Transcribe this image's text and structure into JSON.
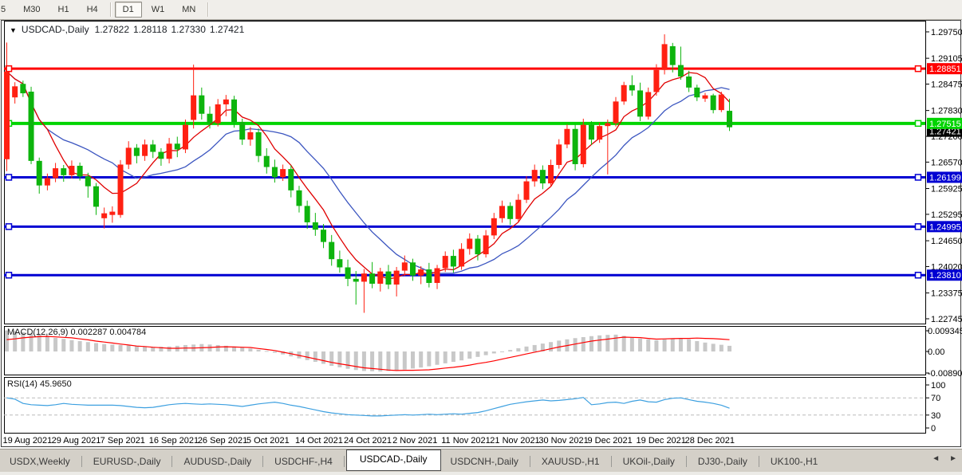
{
  "toolbar": {
    "timeframes": [
      {
        "label": "5",
        "active": false
      },
      {
        "label": "M30",
        "active": false
      },
      {
        "label": "H1",
        "active": false
      },
      {
        "label": "H4",
        "active": false
      },
      {
        "label": "D1",
        "active": true
      },
      {
        "label": "W1",
        "active": false
      },
      {
        "label": "MN",
        "active": false
      }
    ]
  },
  "title": {
    "dropdown_arrow": "▼",
    "symbol": "USDCAD-,Daily",
    "open": "1.27822",
    "high": "1.28118",
    "low": "1.27330",
    "close": "1.27421"
  },
  "indicators": {
    "macd_label": "MACD(12,26,9) 0.002287 0.004784",
    "rsi_label": "RSI(14) 45.9650"
  },
  "axes": {
    "price_ticks": [
      "1.29750",
      "1.29105",
      "1.28475",
      "1.27830",
      "1.27200",
      "1.26570",
      "1.25925",
      "1.25295",
      "1.24650",
      "1.24020",
      "1.23375",
      "1.22745"
    ],
    "macd_ticks": [
      {
        "label": "0.009345",
        "value": 0.009345
      },
      {
        "label": "0.00",
        "value": 0
      },
      {
        "label": "-0.00890",
        "value": -0.0089
      }
    ],
    "rsi_ticks": [
      {
        "label": "100",
        "value": 100
      },
      {
        "label": "70",
        "value": 70
      },
      {
        "label": "30",
        "value": 30
      },
      {
        "label": "0",
        "value": 0
      }
    ],
    "dates": [
      "19 Aug 2021",
      "29 Aug 2021",
      "7 Sep 2021",
      "16 Sep 2021",
      "26 Sep 2021",
      "5 Oct 2021",
      "14 Oct 2021",
      "24 Oct 2021",
      "2 Nov 2021",
      "11 Nov 2021",
      "21 Nov 2021",
      "30 Nov 2021",
      "9 Dec 2021",
      "19 Dec 2021",
      "28 Dec 2021"
    ]
  },
  "levels": [
    {
      "label": "1.28851",
      "price": 1.28851,
      "color": "#ff0000",
      "width": 3
    },
    {
      "label": "1.27515",
      "price": 1.27515,
      "color": "#00d400",
      "width": 4
    },
    {
      "label": "1.26199",
      "price": 1.26199,
      "color": "#0000d2",
      "width": 3
    },
    {
      "label": "1.24995",
      "price": 1.24995,
      "color": "#0000d2",
      "width": 3
    },
    {
      "label": "1.23810",
      "price": 1.2381,
      "color": "#0000d2",
      "width": 3
    }
  ],
  "current_price": {
    "label": "1.27421",
    "price": 1.27421,
    "bg": "#000000"
  },
  "colors": {
    "candle_up": "#ff2012",
    "candle_down": "#0db40d",
    "ma_fast": "#e00000",
    "ma_slow": "#3c56c0",
    "macd_histogram": "#c8c8c8",
    "macd_signal": "#ff0000",
    "rsi_line": "#3da0e0",
    "rsi_level_dash": "#bcbcbc",
    "panel_border": "#000000",
    "axis_text": "#000000"
  },
  "chart_data": [
    {
      "type": "candlestick",
      "symbol": "USDCAD-",
      "timeframe": "Daily",
      "note": "bullish candles rendered red, bearish candles rendered green in this theme",
      "ohlc_last": {
        "open": 1.27822,
        "high": 1.28118,
        "low": 1.2733,
        "close": 1.27421
      },
      "y_ticks": [
        1.2975,
        1.29105,
        1.28475,
        1.2783,
        1.272,
        1.2657,
        1.25925,
        1.25295,
        1.2465,
        1.2402,
        1.23375,
        1.22745
      ],
      "horizontal_lines": [
        1.28851,
        1.27515,
        1.26199,
        1.24995,
        1.2381
      ],
      "ma_fast_period": 6,
      "ma_slow_period": 14,
      "candles": [
        [
          1.2664,
          1.2949,
          1.2635,
          1.2878
        ],
        [
          1.2815,
          1.2852,
          1.28,
          1.2842
        ],
        [
          1.2848,
          1.2856,
          1.2816,
          1.2825
        ],
        [
          1.2829,
          1.2841,
          1.2652,
          1.266
        ],
        [
          1.266,
          1.2668,
          1.258,
          1.26
        ],
        [
          1.26,
          1.2629,
          1.2588,
          1.2618
        ],
        [
          1.2618,
          1.2655,
          1.2608,
          1.2642
        ],
        [
          1.2642,
          1.265,
          1.2609,
          1.2625
        ],
        [
          1.2625,
          1.2661,
          1.2617,
          1.2648
        ],
        [
          1.2648,
          1.2656,
          1.2612,
          1.2622
        ],
        [
          1.2622,
          1.2631,
          1.257,
          1.2598
        ],
        [
          1.2598,
          1.2606,
          1.2528,
          1.2548
        ],
        [
          1.252,
          1.2546,
          1.2495,
          1.2532
        ],
        [
          1.2528,
          1.2549,
          1.2509,
          1.2536
        ],
        [
          1.2528,
          1.2662,
          1.2521,
          1.2651
        ],
        [
          1.2651,
          1.2708,
          1.264,
          1.2692
        ],
        [
          1.2692,
          1.2701,
          1.2654,
          1.2672
        ],
        [
          1.2672,
          1.2712,
          1.266,
          1.27
        ],
        [
          1.27,
          1.2711,
          1.2667,
          1.2682
        ],
        [
          1.2682,
          1.2691,
          1.2648,
          1.2665
        ],
        [
          1.2665,
          1.2716,
          1.2654,
          1.2702
        ],
        [
          1.2702,
          1.2719,
          1.2669,
          1.2688
        ],
        [
          1.2688,
          1.2761,
          1.2679,
          1.2748
        ],
        [
          1.276,
          1.2895,
          1.2739,
          1.282
        ],
        [
          1.282,
          1.2839,
          1.2761,
          1.2775
        ],
        [
          1.2775,
          1.2793,
          1.2739,
          1.2752
        ],
        [
          1.2752,
          1.2811,
          1.2744,
          1.2798
        ],
        [
          1.2798,
          1.2821,
          1.2769,
          1.281
        ],
        [
          1.281,
          1.2819,
          1.2741,
          1.2755
        ],
        [
          1.2755,
          1.2763,
          1.2699,
          1.2712
        ],
        [
          1.2712,
          1.2743,
          1.2697,
          1.273
        ],
        [
          1.273,
          1.2739,
          1.2657,
          1.2672
        ],
        [
          1.2672,
          1.2691,
          1.2629,
          1.2645
        ],
        [
          1.2645,
          1.2663,
          1.2607,
          1.262
        ],
        [
          1.262,
          1.2651,
          1.2611,
          1.264
        ],
        [
          1.264,
          1.2649,
          1.2571,
          1.2588
        ],
        [
          1.2588,
          1.2599,
          1.2534,
          1.255
        ],
        [
          1.255,
          1.2563,
          1.2494,
          1.251
        ],
        [
          1.251,
          1.2533,
          1.2477,
          1.2492
        ],
        [
          1.2492,
          1.2506,
          1.2447,
          1.2462
        ],
        [
          1.2462,
          1.2479,
          1.2404,
          1.242
        ],
        [
          1.242,
          1.2441,
          1.2387,
          1.24
        ],
        [
          1.24,
          1.2419,
          1.2354,
          1.2372
        ],
        [
          1.2372,
          1.2391,
          1.2309,
          1.2365
        ],
        [
          1.2365,
          1.2396,
          1.2289,
          1.2385
        ],
        [
          1.2385,
          1.2413,
          1.2349,
          1.236
        ],
        [
          1.236,
          1.2399,
          1.2341,
          1.239
        ],
        [
          1.239,
          1.2406,
          1.2347,
          1.2358
        ],
        [
          1.2358,
          1.2401,
          1.2329,
          1.2392
        ],
        [
          1.2392,
          1.2429,
          1.2379,
          1.2412
        ],
        [
          1.2412,
          1.2421,
          1.2367,
          1.238
        ],
        [
          1.238,
          1.2403,
          1.2359,
          1.2395
        ],
        [
          1.2395,
          1.2411,
          1.2351,
          1.2362
        ],
        [
          1.2362,
          1.2406,
          1.2347,
          1.2398
        ],
        [
          1.2398,
          1.2439,
          1.2389,
          1.2428
        ],
        [
          1.2428,
          1.2443,
          1.2387,
          1.2402
        ],
        [
          1.2402,
          1.2459,
          1.2394,
          1.2445
        ],
        [
          1.2445,
          1.2483,
          1.2431,
          1.247
        ],
        [
          1.247,
          1.2479,
          1.2417,
          1.2432
        ],
        [
          1.2432,
          1.2491,
          1.2424,
          1.2478
        ],
        [
          1.2478,
          1.2533,
          1.2469,
          1.252
        ],
        [
          1.252,
          1.2563,
          1.2509,
          1.255
        ],
        [
          1.255,
          1.2559,
          1.2504,
          1.2518
        ],
        [
          1.2518,
          1.2579,
          1.2511,
          1.2565
        ],
        [
          1.2565,
          1.2623,
          1.2557,
          1.261
        ],
        [
          1.261,
          1.2651,
          1.2597,
          1.2638
        ],
        [
          1.2638,
          1.2649,
          1.2591,
          1.2605
        ],
        [
          1.2605,
          1.2663,
          1.2597,
          1.265
        ],
        [
          1.265,
          1.2713,
          1.2641,
          1.27
        ],
        [
          1.27,
          1.2749,
          1.2691,
          1.2738
        ],
        [
          1.2738,
          1.2749,
          1.2637,
          1.2652
        ],
        [
          1.2652,
          1.2763,
          1.2644,
          1.2748
        ],
        [
          1.2748,
          1.2757,
          1.2699,
          1.2712
        ],
        [
          1.2712,
          1.2753,
          1.2704,
          1.2745
        ],
        [
          1.2745,
          1.2761,
          1.2627,
          1.2752
        ],
        [
          1.2752,
          1.2816,
          1.2744,
          1.2805
        ],
        [
          1.2805,
          1.2853,
          1.2797,
          1.2845
        ],
        [
          1.2845,
          1.2869,
          1.2819,
          1.2832
        ],
        [
          1.2832,
          1.2851,
          1.2757,
          1.2768
        ],
        [
          1.2768,
          1.2839,
          1.2761,
          1.2828
        ],
        [
          1.2828,
          1.2896,
          1.2819,
          1.2882
        ],
        [
          1.2882,
          1.2969,
          1.2871,
          1.2945
        ],
        [
          1.294,
          1.2948,
          1.2876,
          1.2894
        ],
        [
          1.2894,
          1.2939,
          1.2858,
          1.2866
        ],
        [
          1.2866,
          1.288,
          1.2828,
          1.2839
        ],
        [
          1.2839,
          1.2846,
          1.2806,
          1.2815
        ],
        [
          1.2812,
          1.2826,
          1.2804,
          1.282
        ],
        [
          1.282,
          1.2824,
          1.2776,
          1.2784
        ],
        [
          1.2784,
          1.2829,
          1.2779,
          1.2822
        ],
        [
          1.27822,
          1.28118,
          1.2733,
          1.27421
        ]
      ]
    },
    {
      "type": "bar",
      "name": "MACD(12,26,9)",
      "current_macd": 0.002287,
      "current_signal": 0.004784,
      "y_ticks": [
        0.009345,
        0,
        -0.0089
      ],
      "histogram": [
        0.0085,
        0.0082,
        0.0078,
        0.0073,
        0.0068,
        0.0062,
        0.0055,
        0.0051,
        0.0046,
        0.0042,
        0.0038,
        0.0034,
        0.003,
        0.0028,
        0.0026,
        0.0024,
        0.0022,
        0.002,
        0.0018,
        0.0019,
        0.002,
        0.0023,
        0.0026,
        0.0028,
        0.003,
        0.0028,
        0.0026,
        0.0023,
        0.002,
        0.0016,
        0.0012,
        0.0007,
        0.0002,
        -0.0005,
        -0.0012,
        -0.002,
        -0.0028,
        -0.0035,
        -0.0042,
        -0.005,
        -0.0058,
        -0.0064,
        -0.007,
        -0.0075,
        -0.0079,
        -0.008,
        -0.0081,
        -0.0079,
        -0.0076,
        -0.0073,
        -0.0069,
        -0.0065,
        -0.006,
        -0.0054,
        -0.0048,
        -0.0042,
        -0.0036,
        -0.0029,
        -0.0022,
        -0.0015,
        -0.0008,
        -0.0001,
        0.0006,
        0.0013,
        0.002,
        0.0026,
        0.0032,
        0.0038,
        0.0044,
        0.0049,
        0.0054,
        0.0058,
        0.0062,
        0.0065,
        0.0067,
        0.0068,
        0.0063,
        0.0058,
        0.0052,
        0.0049,
        0.0045,
        0.0049,
        0.0052,
        0.0054,
        0.0049,
        0.0042,
        0.0036,
        0.0031,
        0.0027,
        0.002287
      ],
      "signal": [
        0.0048,
        0.0051,
        0.0055,
        0.0058,
        0.006,
        0.0061,
        0.0059,
        0.0057,
        0.0055,
        0.0051,
        0.0047,
        0.0042,
        0.0038,
        0.0034,
        0.003,
        0.0026,
        0.0022,
        0.002,
        0.0017,
        0.0015,
        0.0013,
        0.0013,
        0.0014,
        0.0014,
        0.0015,
        0.0016,
        0.0018,
        0.0019,
        0.0018,
        0.0017,
        0.0016,
        0.0012,
        0.0008,
        0.0004,
        -0.0003,
        -0.0009,
        -0.0016,
        -0.0023,
        -0.003,
        -0.0037,
        -0.0044,
        -0.005,
        -0.0055,
        -0.0061,
        -0.0066,
        -0.0069,
        -0.0072,
        -0.0075,
        -0.0077,
        -0.0076,
        -0.0076,
        -0.0075,
        -0.0074,
        -0.0071,
        -0.0067,
        -0.0064,
        -0.006,
        -0.0055,
        -0.0049,
        -0.0044,
        -0.0038,
        -0.0031,
        -0.0024,
        -0.0017,
        -0.001,
        -0.0003,
        0.0004,
        0.0011,
        0.0018,
        0.0024,
        0.003,
        0.0036,
        0.0042,
        0.0046,
        0.005,
        0.0054,
        0.0058,
        0.0057,
        0.0056,
        0.0053,
        0.005,
        0.0051,
        0.0052,
        0.0053,
        0.0053,
        0.0054,
        0.0053,
        0.0052,
        0.005,
        0.004784
      ]
    },
    {
      "type": "line",
      "name": "RSI(14)",
      "current": 45.965,
      "levels": [
        70,
        30
      ],
      "y_ticks": [
        100,
        70,
        30,
        0
      ],
      "values": [
        70,
        67,
        57,
        54,
        53,
        52,
        54,
        57,
        55,
        54,
        53,
        53,
        53,
        53,
        52,
        50,
        48,
        47,
        48,
        51,
        54,
        56,
        57,
        56,
        55,
        56,
        55,
        54,
        52,
        50,
        53,
        56,
        58,
        60,
        57,
        53,
        50,
        46,
        42,
        38,
        35,
        33,
        31,
        30,
        29,
        28,
        28,
        29,
        30,
        31,
        30,
        31,
        32,
        31,
        32,
        33,
        32,
        34,
        36,
        40,
        45,
        50,
        55,
        58,
        61,
        63,
        65,
        63,
        64,
        66,
        68,
        71,
        54,
        56,
        59,
        60,
        57,
        62,
        65,
        61,
        60,
        66,
        69,
        70,
        66,
        62,
        60,
        57,
        53,
        46
      ]
    }
  ],
  "tabs": {
    "items": [
      "USDX,Weekly",
      "EURUSD-,Daily",
      "AUDUSD-,Daily",
      "USDCHF-,H4",
      "USDCAD-,Daily",
      "USDCNH-,Daily",
      "XAUUSD-,H1",
      "UKOil-,Daily",
      "DJ30-,Daily",
      "UK100-,H1"
    ],
    "active": "USDCAD-,Daily"
  },
  "scrollbar": {
    "left": "◄",
    "right": "►"
  }
}
